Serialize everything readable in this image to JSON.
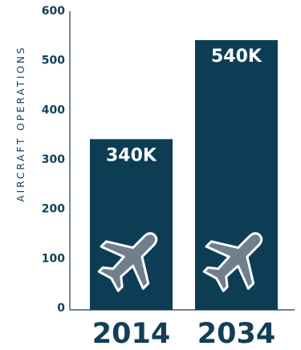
{
  "chart_data": {
    "type": "bar",
    "categories": [
      "2014",
      "2034"
    ],
    "values": [
      340,
      540
    ],
    "data_labels": [
      "340K",
      "540K"
    ],
    "ylabel": "AIRCRAFT OPERATIONS",
    "xlabel": "",
    "ylim": [
      0,
      600
    ],
    "yticks": [
      "0",
      "100",
      "200",
      "300",
      "400",
      "500",
      "600"
    ],
    "grid": false,
    "legend": "none",
    "bar_color": "#0d3d55",
    "text_color": "#123f57",
    "icon": "airplane-icon",
    "icon_color": "#6f7f8b"
  }
}
